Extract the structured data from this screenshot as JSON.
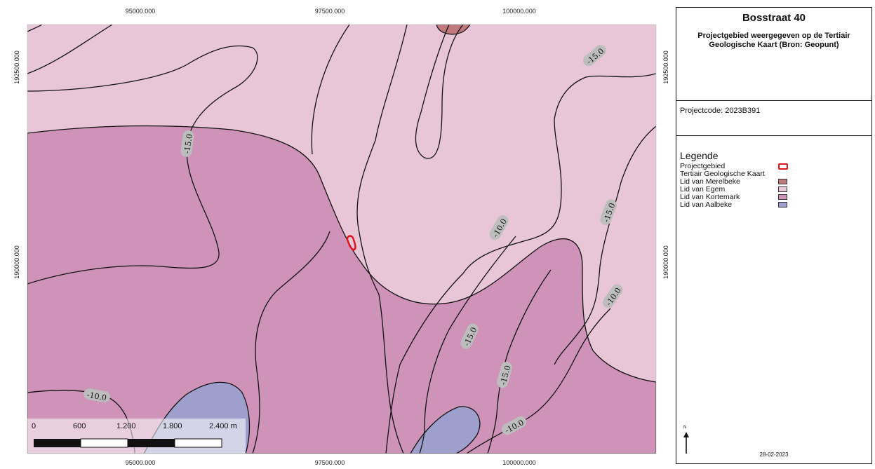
{
  "map": {
    "coords_top": [
      "95000.000",
      "97500.000",
      "100000.000"
    ],
    "coords_bottom": [
      "95000.000",
      "97500.000",
      "100000.000"
    ],
    "coords_left": [
      "192500.000",
      "190000.000"
    ],
    "coords_right": [
      "192500.000",
      "190000.000"
    ],
    "scale_labels": [
      "0",
      "600",
      "1.200",
      "1.800",
      "2.400 m"
    ],
    "contour_labels": [
      "-15.0",
      "-15.0",
      "-10.0",
      "-15.0",
      "-10.0",
      "-15.0",
      "-15.0",
      "-10.0",
      "-10.0"
    ],
    "colors": {
      "merelbeke": "#c07a7e",
      "egem": "#e8c6d8",
      "kortemark": "#cf92b9",
      "aalbeke": "#9e9fcd",
      "project": "#e0141c",
      "label_halo": "#bdbdbd"
    }
  },
  "sidebar": {
    "title": "Bosstraat 40",
    "subtitle": "Projectgebied weergegeven op de Tertiair Geologische Kaart (Bron: Geopunt)",
    "project_code": "Projectcode: 2023B391",
    "legend_title": "Legende",
    "legend_items": [
      {
        "label": "Projectgebied",
        "icon": "project-outline"
      },
      {
        "label": "Tertiair Geologische Kaart",
        "icon": ""
      },
      {
        "label": "Lid van Merelbeke",
        "color": "#c07a7e"
      },
      {
        "label": "Lid van Egem",
        "color": "#e8c6d8"
      },
      {
        "label": "Lid van Kortemark",
        "color": "#cf92b9"
      },
      {
        "label": "Lid van Aalbeke",
        "color": "#9e9fcd"
      }
    ],
    "north_label": "N",
    "north_icon": "north-arrow-icon",
    "date": "28-02-2023"
  }
}
